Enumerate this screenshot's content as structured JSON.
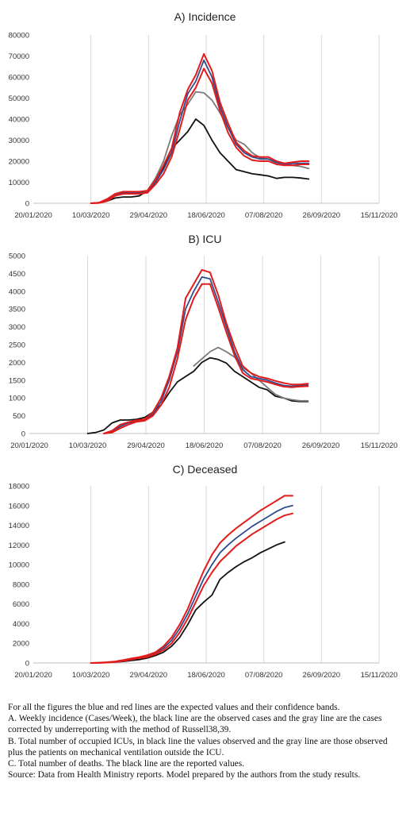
{
  "colors": {
    "blue": "#2e4d8f",
    "red": "#e31b1b",
    "black": "#111111",
    "gray": "#7a7a7a",
    "grid": "#d9d9d9"
  },
  "chart_data": [
    {
      "type": "line",
      "title": "A) Incidence",
      "xlabel": "",
      "ylabel": "",
      "x_ticks": [
        "20/01/2020",
        "10/03/2020",
        "29/04/2020",
        "18/06/2020",
        "07/08/2020",
        "26/09/2020",
        "15/11/2020"
      ],
      "y_ticks": [
        "0",
        "10000",
        "20000",
        "30000",
        "40000",
        "50000",
        "60000",
        "70000",
        "80000"
      ],
      "ylim": [
        0,
        80000
      ],
      "grid": "vertical",
      "x_dates": [
        "2020-03-10",
        "2020-03-17",
        "2020-03-24",
        "2020-03-31",
        "2020-04-07",
        "2020-04-14",
        "2020-04-21",
        "2020-04-28",
        "2020-05-05",
        "2020-05-12",
        "2020-05-19",
        "2020-05-26",
        "2020-06-02",
        "2020-06-09",
        "2020-06-16",
        "2020-06-23",
        "2020-06-30",
        "2020-07-07",
        "2020-07-14",
        "2020-07-21",
        "2020-07-28",
        "2020-08-04",
        "2020-08-11",
        "2020-08-18",
        "2020-08-25",
        "2020-09-01",
        "2020-09-08",
        "2020-09-15",
        "2020-09-22"
      ],
      "series": [
        {
          "color": "black",
          "values": [
            0,
            300,
            1000,
            2500,
            3000,
            3000,
            3500,
            6000,
            11000,
            17000,
            26000,
            30000,
            34000,
            40000,
            37000,
            30000,
            24000,
            20000,
            16000,
            15000,
            14000,
            13500,
            13000,
            11800,
            12300,
            12300,
            12000,
            11500,
            null
          ]
        },
        {
          "color": "gray",
          "values": [
            null,
            null,
            null,
            null,
            null,
            null,
            null,
            6000,
            12000,
            20000,
            32000,
            42000,
            47000,
            53000,
            52500,
            49000,
            43000,
            36000,
            30000,
            28000,
            24000,
            21500,
            21000,
            19000,
            19000,
            18000,
            17500,
            16500,
            null
          ]
        },
        {
          "color": "blue",
          "values": [
            0,
            200,
            1500,
            4000,
            5000,
            5000,
            5000,
            5500,
            10000,
            16000,
            24000,
            39000,
            52000,
            58000,
            68000,
            60000,
            46000,
            36000,
            28000,
            24000,
            22000,
            21000,
            21000,
            19500,
            18500,
            19000,
            19000,
            19000,
            null
          ]
        },
        {
          "color": "red",
          "values": [
            0,
            300,
            2000,
            4500,
            5500,
            5500,
            5500,
            6000,
            11000,
            18000,
            26000,
            43000,
            54000,
            61000,
            71000,
            63000,
            48000,
            38000,
            29000,
            25000,
            22500,
            22000,
            22000,
            20000,
            19000,
            19500,
            20000,
            20000,
            null
          ]
        },
        {
          "color": "red",
          "values": [
            0,
            100,
            1000,
            3500,
            4500,
            4500,
            4500,
            5000,
            9000,
            14000,
            22000,
            35000,
            49000,
            55000,
            64000,
            57000,
            44000,
            33500,
            26500,
            22500,
            20500,
            20000,
            20000,
            18500,
            18000,
            18000,
            18500,
            18500,
            null
          ]
        }
      ]
    },
    {
      "type": "line",
      "title": "B) ICU",
      "xlabel": "",
      "ylabel": "",
      "x_ticks": [
        "20/01/2020",
        "10/03/2020",
        "29/04/2020",
        "18/06/2020",
        "07/08/2020",
        "26/09/2020",
        "15/11/2020"
      ],
      "y_ticks": [
        "0",
        "500",
        "1000",
        "1500",
        "2000",
        "2500",
        "3000",
        "3500",
        "4000",
        "4500",
        "5000"
      ],
      "ylim": [
        0,
        5000
      ],
      "grid": "vertical",
      "x_dates": [
        "2020-03-10",
        "2020-03-17",
        "2020-03-24",
        "2020-03-31",
        "2020-04-07",
        "2020-04-14",
        "2020-04-21",
        "2020-04-28",
        "2020-05-05",
        "2020-05-12",
        "2020-05-19",
        "2020-05-26",
        "2020-06-02",
        "2020-06-09",
        "2020-06-16",
        "2020-06-23",
        "2020-06-30",
        "2020-07-07",
        "2020-07-14",
        "2020-07-21",
        "2020-07-28",
        "2020-08-04",
        "2020-08-11",
        "2020-08-18",
        "2020-08-25",
        "2020-09-01",
        "2020-09-08",
        "2020-09-15",
        "2020-09-22"
      ],
      "series": [
        {
          "color": "black",
          "values": [
            0,
            30,
            100,
            300,
            380,
            380,
            400,
            450,
            600,
            800,
            1150,
            1450,
            1600,
            1750,
            2000,
            2130,
            2080,
            1980,
            1750,
            1600,
            1450,
            1300,
            1230,
            1050,
            1000,
            920,
            900,
            900,
            null
          ]
        },
        {
          "color": "gray",
          "values": [
            null,
            null,
            null,
            null,
            null,
            null,
            null,
            null,
            null,
            null,
            null,
            null,
            null,
            1900,
            2100,
            2300,
            2420,
            2300,
            2150,
            1850,
            1700,
            1500,
            1300,
            1100,
            1000,
            950,
            920,
            920,
            null
          ]
        },
        {
          "color": "blue",
          "values": [
            null,
            null,
            0,
            50,
            200,
            300,
            350,
            380,
            550,
            900,
            1500,
            2300,
            3500,
            4000,
            4400,
            4350,
            3700,
            3000,
            2300,
            1800,
            1600,
            1550,
            1500,
            1420,
            1350,
            1330,
            1350,
            1370,
            null
          ]
        },
        {
          "color": "red",
          "values": [
            null,
            null,
            0,
            80,
            250,
            320,
            370,
            400,
            600,
            1000,
            1600,
            2400,
            3800,
            4200,
            4600,
            4530,
            3900,
            3100,
            2450,
            1900,
            1700,
            1600,
            1550,
            1480,
            1420,
            1380,
            1380,
            1400,
            null
          ]
        },
        {
          "color": "red",
          "values": [
            null,
            null,
            0,
            30,
            150,
            250,
            330,
            360,
            500,
            800,
            1300,
            2100,
            3200,
            3800,
            4200,
            4200,
            3550,
            2850,
            2200,
            1700,
            1550,
            1500,
            1450,
            1380,
            1320,
            1300,
            1320,
            1330,
            null
          ]
        }
      ]
    },
    {
      "type": "line",
      "title": "C) Deceased",
      "xlabel": "",
      "ylabel": "",
      "x_ticks": [
        "20/01/2020",
        "10/03/2020",
        "29/04/2020",
        "18/06/2020",
        "07/08/2020",
        "26/09/2020",
        "15/11/2020"
      ],
      "y_ticks": [
        "0",
        "2000",
        "4000",
        "6000",
        "8000",
        "10000",
        "12000",
        "14000",
        "16000",
        "18000"
      ],
      "ylim": [
        0,
        18000
      ],
      "grid": "vertical",
      "x_dates": [
        "2020-03-10",
        "2020-03-17",
        "2020-03-24",
        "2020-03-31",
        "2020-04-07",
        "2020-04-14",
        "2020-04-21",
        "2020-04-28",
        "2020-05-05",
        "2020-05-12",
        "2020-05-19",
        "2020-05-26",
        "2020-06-02",
        "2020-06-09",
        "2020-06-16",
        "2020-06-23",
        "2020-06-30",
        "2020-07-07",
        "2020-07-14",
        "2020-07-21",
        "2020-07-28",
        "2020-08-04",
        "2020-08-11",
        "2020-08-18",
        "2020-08-25",
        "2020-09-01",
        "2020-09-08",
        "2020-09-15",
        "2020-09-22"
      ],
      "series": [
        {
          "color": "black",
          "values": [
            0,
            20,
            50,
            100,
            150,
            250,
            350,
            500,
            750,
            1100,
            1700,
            2600,
            3900,
            5400,
            6200,
            6900,
            8500,
            9200,
            9800,
            10300,
            10700,
            11200,
            11600,
            12000,
            12300,
            null,
            null,
            null,
            null
          ]
        },
        {
          "color": "blue",
          "values": [
            0,
            20,
            60,
            120,
            250,
            400,
            550,
            700,
            1000,
            1500,
            2300,
            3500,
            5000,
            6800,
            8600,
            10000,
            11200,
            12000,
            12700,
            13300,
            13900,
            14400,
            14900,
            15400,
            15800,
            16000,
            null,
            null,
            null
          ]
        },
        {
          "color": "red",
          "values": [
            0,
            30,
            80,
            150,
            300,
            450,
            600,
            800,
            1100,
            1700,
            2600,
            3900,
            5500,
            7500,
            9400,
            11000,
            12200,
            13000,
            13700,
            14300,
            14900,
            15500,
            16000,
            16500,
            17000,
            17000,
            null,
            null,
            null
          ]
        },
        {
          "color": "red",
          "values": [
            0,
            10,
            40,
            100,
            200,
            350,
            500,
            600,
            900,
            1300,
            2000,
            3100,
            4500,
            6200,
            7900,
            9200,
            10300,
            11100,
            11900,
            12500,
            13100,
            13600,
            14100,
            14600,
            15000,
            15200,
            null,
            null,
            null
          ]
        }
      ]
    }
  ],
  "caption": {
    "line1": "For all the figures the blue and red lines are the expected values and their confidence bands.",
    "line2": "A. Weekly incidence (Cases/Week), the black line are the observed cases and the gray line are the cases corrected by underreporting with the method of Russell38,39.",
    "line3": "B. Total number of occupied ICUs, in black line the values observed and the gray line are those observed plus the patients on mechanical ventilation outside the ICU.",
    "line4": "C. Total number of deaths. The black line are the reported values.",
    "line5": "Source: Data from Health Ministry reports. Model prepared by the authors from the study results."
  }
}
